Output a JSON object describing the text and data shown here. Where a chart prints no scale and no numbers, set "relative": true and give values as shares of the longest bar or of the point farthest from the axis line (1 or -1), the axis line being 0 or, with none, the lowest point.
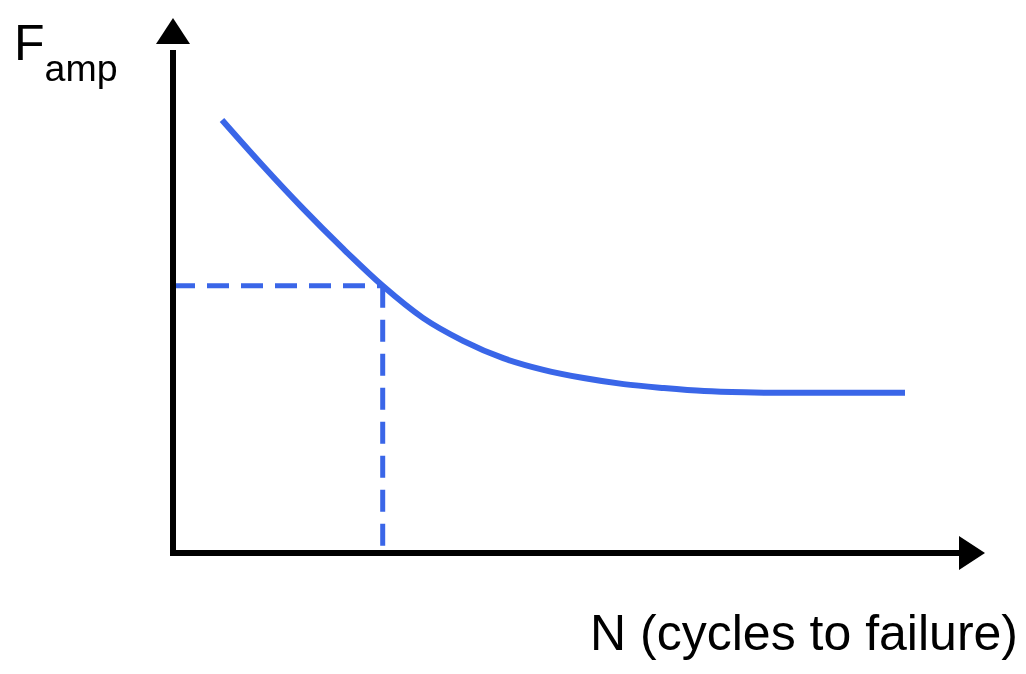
{
  "chart_data": {
    "type": "line",
    "relative": true,
    "xlabel": "N (cycles to failure)",
    "ylabel": "F$_{amp}$",
    "categories": [
      null,
      null,
      null,
      null,
      null,
      null,
      null,
      null,
      null,
      null,
      null,
      null,
      null,
      null,
      null,
      null,
      null,
      null
    ],
    "series": [
      {
        "color": "#3a66e8",
        "values": [
          1.0,
          0.896,
          0.797,
          0.704,
          0.617,
          0.543,
          0.49,
          0.45,
          0.423,
          0.404,
          0.39,
          0.381,
          0.374,
          0.371,
          0.37,
          0.37,
          0.37,
          0.37
        ]
      }
    ],
    "ref_lines": [
      {
        "axis": "y",
        "value": 0.617,
        "color": "#3a66e8",
        "line_style": "dashed"
      }
    ],
    "line_style": "solid",
    "marker": "none"
  }
}
